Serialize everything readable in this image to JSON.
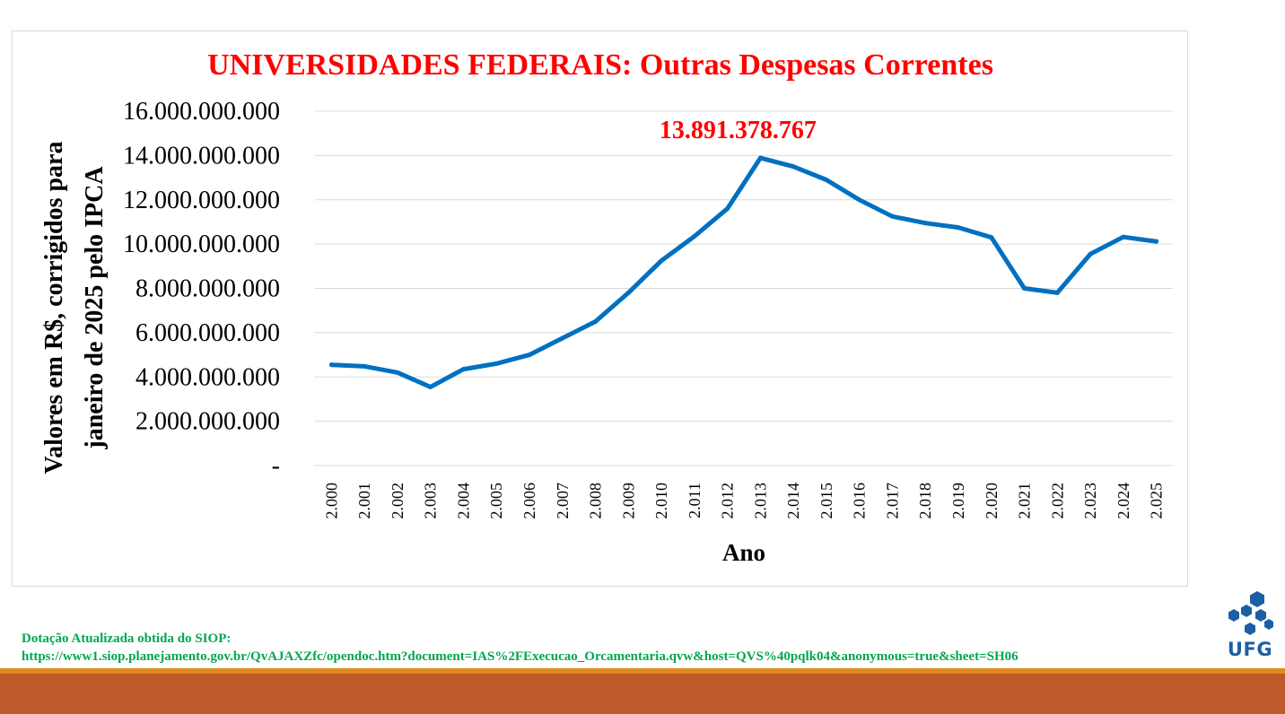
{
  "chart_data": {
    "type": "line",
    "title": "UNIVERSIDADES FEDERAIS: Outras Despesas Correntes",
    "xlabel": "Ano",
    "ylabel_lines": [
      "Valores em R$, corrigidos para",
      "janeiro de 2025 pelo IPCA"
    ],
    "ylim": [
      0,
      16000000000
    ],
    "yticks": [
      0,
      2000000000,
      4000000000,
      6000000000,
      8000000000,
      10000000000,
      12000000000,
      14000000000,
      16000000000
    ],
    "ytick_labels": [
      "-",
      "2.000.000.000",
      "4.000.000.000",
      "6.000.000.000",
      "8.000.000.000",
      "10.000.000.000",
      "12.000.000.000",
      "14.000.000.000",
      "16.000.000.000"
    ],
    "categories": [
      "2.000",
      "2.001",
      "2.002",
      "2.003",
      "2.004",
      "2.005",
      "2.006",
      "2.007",
      "2.008",
      "2.009",
      "2.010",
      "2.011",
      "2.012",
      "2.013",
      "2.014",
      "2.015",
      "2.016",
      "2.017",
      "2.018",
      "2.019",
      "2.020",
      "2.021",
      "2.022",
      "2.023",
      "2.024",
      "2.025"
    ],
    "series": [
      {
        "values": [
          4550000000,
          4480000000,
          4200000000,
          3550000000,
          4350000000,
          4600000000,
          5000000000,
          5750000000,
          6500000000,
          7800000000,
          9250000000,
          10350000000,
          11600000000,
          13891378767,
          13500000000,
          12900000000,
          12000000000,
          11250000000,
          10950000000,
          10750000000,
          10300000000,
          8000000000,
          7800000000,
          9550000000,
          10320000000,
          10120000000
        ],
        "color": "#0070c0"
      }
    ],
    "annotations": [
      {
        "category": "2.013",
        "text": "13.891.378.767",
        "color": "#ff0000"
      }
    ],
    "grid": true,
    "title_color": "#ff0000"
  },
  "source": {
    "line1": "Dotação Atualizada obtida do SIOP:",
    "line2": "https://www1.siop.planejamento.gov.br/QvAJAXZfc/opendoc.htm?document=IAS%2FExecucao_Orcamentaria.qvw&host=QVS%40pqlk04&anonymous=true&sheet=SH06"
  },
  "logo": {
    "text": "UFG",
    "color": "#1b5fa6",
    "icon": "hexagon-cluster-icon"
  },
  "colors": {
    "footer_bar": "#bf5a2a",
    "footer_line": "#e08a1e",
    "source_text": "#00a651"
  }
}
